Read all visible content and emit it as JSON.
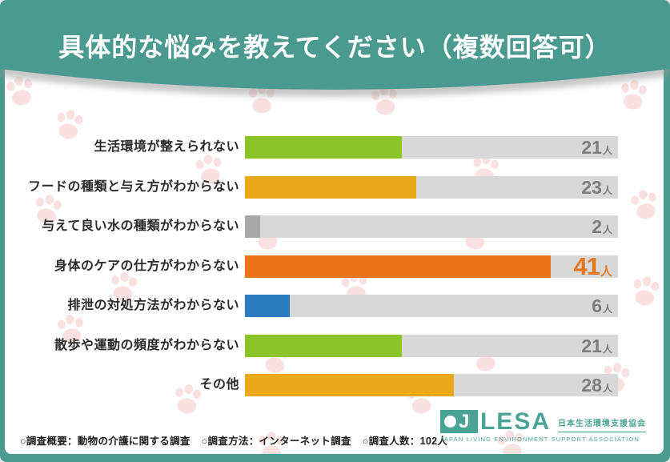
{
  "header": {
    "title": "具体的な悩みを教えてください（複数回答可）"
  },
  "chart_data": {
    "type": "bar",
    "orientation": "horizontal",
    "title": "具体的な悩みを教えてください（複数回答可）",
    "categories": [
      "生活環境が整えられない",
      "フードの種類と与え方がわからない",
      "与えて良い水の種類がわからない",
      "身体のケアの仕方がわからない",
      "排泄の対処方法がわからない",
      "散歩や運動の頻度がわからない",
      "その他"
    ],
    "values": [
      21,
      23,
      2,
      41,
      6,
      21,
      28
    ],
    "unit": "人",
    "value_labels": [
      "21人",
      "23人",
      "2人",
      "41人",
      "6人",
      "21人",
      "28人"
    ],
    "xlim": [
      0,
      50
    ],
    "bar_colors": [
      "#8dc42a",
      "#e9a91b",
      "#a9a9a9",
      "#ed7418",
      "#2d7cc0",
      "#8dc42a",
      "#e9a91b"
    ],
    "track_color": "#d8d8d8",
    "highlight_index": 3,
    "value_color": "#7d7d7d",
    "highlight_value_color": "#e8761a",
    "legend": null,
    "grid": false
  },
  "footer": {
    "survey_overview": "○調査概要：動物の介護に関する調査",
    "survey_method": "○調査方法：インターネット調査",
    "survey_count": "○調査人数：102人"
  },
  "logo": {
    "j_letter": "J",
    "name": "LESA",
    "jp_name": "日本生活環境支援協会",
    "en_name": "JAPAN LIVING ENVIRONMENT SUPPORT ASSOCIATION"
  },
  "colors": {
    "frame_teal": "#4b9a8f",
    "logo_teal": "#4aa394",
    "paw_pink": "#f6c9c9",
    "card_bg": "#ffffff"
  }
}
